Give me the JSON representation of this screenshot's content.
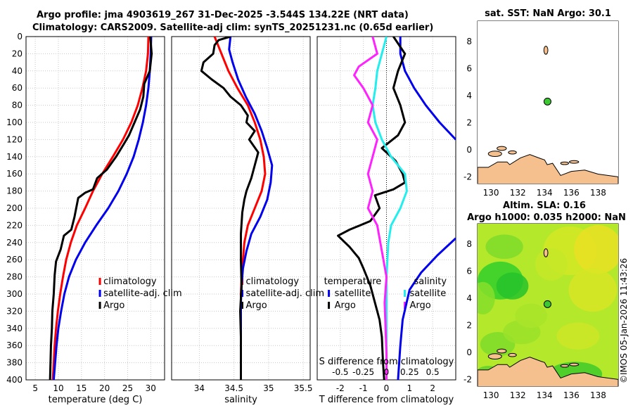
{
  "header": {
    "line1": "Argo profile: jma 4903619_267 31-Dec-2025 -3.544S 134.22E (NRT data)",
    "line2": "Climatology: CARS2009. Satellite-adj clim: synTS_20251231.nc (0.65d earlier)"
  },
  "colors": {
    "climatology": "#ff0000",
    "satellite": "#0000ee",
    "argo": "#000000",
    "t_diff": "#000000",
    "s_diff": "#ff22ff",
    "s_sat": "#22eeee",
    "land": "#f6c08e"
  },
  "chart_data": [
    {
      "type": "line",
      "id": "temperature",
      "xlabel": "temperature (deg C)",
      "ylabel": "",
      "xlim": [
        3,
        33
      ],
      "ylim": [
        400,
        0
      ],
      "xticks": [
        5,
        10,
        15,
        20,
        25,
        30
      ],
      "yticks": [
        0,
        20,
        40,
        60,
        80,
        100,
        120,
        140,
        160,
        180,
        200,
        220,
        240,
        260,
        280,
        300,
        320,
        340,
        360,
        380,
        400
      ],
      "legend": [
        "climatology",
        "satellite-adj. clim",
        "Argo"
      ],
      "series": [
        {
          "name": "climatology",
          "points": [
            [
              29.5,
              0
            ],
            [
              29.4,
              20
            ],
            [
              29,
              40
            ],
            [
              28.2,
              60
            ],
            [
              27.2,
              80
            ],
            [
              25.8,
              100
            ],
            [
              24,
              120
            ],
            [
              21.8,
              140
            ],
            [
              19.5,
              160
            ],
            [
              17.5,
              180
            ],
            [
              15.8,
              200
            ],
            [
              14,
              220
            ],
            [
              12.7,
              240
            ],
            [
              11.7,
              260
            ],
            [
              11,
              280
            ],
            [
              10.4,
              300
            ],
            [
              9.9,
              320
            ],
            [
              9.5,
              340
            ],
            [
              9.2,
              360
            ],
            [
              9,
              380
            ],
            [
              8.8,
              400
            ]
          ]
        },
        {
          "name": "satellite-adj. clim",
          "points": [
            [
              30.1,
              0
            ],
            [
              30,
              20
            ],
            [
              29.8,
              40
            ],
            [
              29.5,
              60
            ],
            [
              29,
              80
            ],
            [
              28.3,
              100
            ],
            [
              27.4,
              120
            ],
            [
              26.3,
              140
            ],
            [
              24.8,
              160
            ],
            [
              23,
              180
            ],
            [
              20.8,
              200
            ],
            [
              18.2,
              220
            ],
            [
              15.8,
              240
            ],
            [
              13.8,
              260
            ],
            [
              12.3,
              280
            ],
            [
              11.3,
              300
            ],
            [
              10.6,
              320
            ],
            [
              10,
              340
            ],
            [
              9.6,
              360
            ],
            [
              9.3,
              380
            ],
            [
              9,
              400
            ]
          ]
        },
        {
          "name": "Argo",
          "points": [
            [
              29.9,
              0
            ],
            [
              30.2,
              20
            ],
            [
              29.8,
              40
            ],
            [
              28.6,
              55
            ],
            [
              28.4,
              70
            ],
            [
              27.7,
              85
            ],
            [
              26.5,
              100
            ],
            [
              25.3,
              115
            ],
            [
              24.2,
              125
            ],
            [
              22.5,
              140
            ],
            [
              20.5,
              155
            ],
            [
              18.4,
              165
            ],
            [
              17.5,
              178
            ],
            [
              15.8,
              182
            ],
            [
              14.3,
              188
            ],
            [
              13.5,
              210
            ],
            [
              12.8,
              225
            ],
            [
              11.2,
              232
            ],
            [
              10.5,
              248
            ],
            [
              9.5,
              262
            ],
            [
              9.2,
              278
            ],
            [
              9,
              300
            ],
            [
              8.7,
              320
            ],
            [
              8.6,
              340
            ],
            [
              8.4,
              360
            ],
            [
              8.3,
              380
            ],
            [
              8.2,
              400
            ]
          ]
        }
      ]
    },
    {
      "type": "line",
      "id": "salinity",
      "xlabel": "salinity",
      "xlim": [
        33.6,
        35.6
      ],
      "ylim": [
        400,
        0
      ],
      "xticks": [
        34,
        34.5,
        35,
        35.5
      ],
      "xticklabels": [
        "34",
        "34.5",
        "35",
        "35.5"
      ],
      "legend": [
        "climatology",
        "satellite-adj. clim",
        "Argo"
      ],
      "series": [
        {
          "name": "climatology",
          "points": [
            [
              34.22,
              0
            ],
            [
              34.32,
              20
            ],
            [
              34.42,
              40
            ],
            [
              34.55,
              60
            ],
            [
              34.7,
              80
            ],
            [
              34.8,
              100
            ],
            [
              34.88,
              120
            ],
            [
              34.93,
              140
            ],
            [
              34.95,
              160
            ],
            [
              34.9,
              180
            ],
            [
              34.8,
              200
            ],
            [
              34.7,
              220
            ],
            [
              34.65,
              240
            ],
            [
              34.63,
              260
            ],
            [
              34.61,
              280
            ],
            [
              34.6,
              300
            ],
            [
              34.6,
              320
            ],
            [
              34.6,
              340
            ],
            [
              34.6,
              360
            ],
            [
              34.6,
              380
            ],
            [
              34.6,
              400
            ]
          ]
        },
        {
          "name": "satellite-adj. clim",
          "points": [
            [
              34.45,
              0
            ],
            [
              34.43,
              15
            ],
            [
              34.48,
              30
            ],
            [
              34.56,
              50
            ],
            [
              34.67,
              70
            ],
            [
              34.8,
              90
            ],
            [
              34.9,
              110
            ],
            [
              34.98,
              130
            ],
            [
              35.05,
              150
            ],
            [
              35.03,
              170
            ],
            [
              34.98,
              190
            ],
            [
              34.88,
              210
            ],
            [
              34.75,
              230
            ],
            [
              34.68,
              250
            ],
            [
              34.63,
              270
            ],
            [
              34.61,
              290
            ],
            [
              34.6,
              310
            ],
            [
              34.6,
              330
            ],
            [
              34.6,
              350
            ],
            [
              34.6,
              370
            ],
            [
              34.6,
              400
            ]
          ]
        },
        {
          "name": "Argo",
          "points": [
            [
              34.45,
              0
            ],
            [
              34.28,
              4
            ],
            [
              34.22,
              10
            ],
            [
              34.2,
              20
            ],
            [
              34.06,
              30
            ],
            [
              34.03,
              40
            ],
            [
              34.18,
              50
            ],
            [
              34.35,
              60
            ],
            [
              34.45,
              70
            ],
            [
              34.6,
              80
            ],
            [
              34.7,
              92
            ],
            [
              34.68,
              100
            ],
            [
              34.8,
              110
            ],
            [
              34.72,
              120
            ],
            [
              34.85,
              135
            ],
            [
              34.8,
              150
            ],
            [
              34.75,
              165
            ],
            [
              34.68,
              180
            ],
            [
              34.65,
              190
            ],
            [
              34.62,
              205
            ],
            [
              34.6,
              230
            ],
            [
              34.6,
              260
            ],
            [
              34.61,
              290
            ],
            [
              34.59,
              320
            ],
            [
              34.6,
              350
            ],
            [
              34.6,
              380
            ],
            [
              34.6,
              400
            ]
          ]
        }
      ]
    },
    {
      "type": "line",
      "id": "difference",
      "xlabel": "T difference from climatology",
      "toplabel": "S difference from climatology",
      "xlim": [
        -3,
        3
      ],
      "ylim": [
        400,
        0
      ],
      "xticks": [
        -2,
        -1,
        0,
        1,
        2
      ],
      "xticklabels": [
        "-2",
        "-1",
        "0",
        "1",
        "2"
      ],
      "topticks": [
        -0.5,
        -0.25,
        0,
        0.25,
        0.5
      ],
      "toplabels": [
        "-0.5",
        "-0.25",
        "0",
        "0.25",
        "0.5"
      ],
      "legend_t": [
        "temperature",
        "satellite",
        "Argo"
      ],
      "legend_s": [
        "salinity",
        "satellite",
        "Argo"
      ],
      "series": [
        {
          "name": "T satellite",
          "points": [
            [
              0.6,
              0
            ],
            [
              0.6,
              20
            ],
            [
              0.8,
              40
            ],
            [
              1.2,
              60
            ],
            [
              1.7,
              80
            ],
            [
              2.3,
              100
            ],
            [
              3,
              120
            ]
          ]
        },
        {
          "name": "T satellite deep",
          "points": [
            [
              3,
              235
            ],
            [
              2.2,
              255
            ],
            [
              1.5,
              275
            ],
            [
              1,
              295
            ],
            [
              0.7,
              330
            ],
            [
              0.6,
              360
            ],
            [
              0.5,
              400
            ]
          ]
        },
        {
          "name": "T Argo",
          "points": [
            [
              0.3,
              0
            ],
            [
              0.8,
              20
            ],
            [
              0.5,
              40
            ],
            [
              0.3,
              60
            ],
            [
              0.6,
              80
            ],
            [
              0.8,
              100
            ],
            [
              0.5,
              115
            ],
            [
              -0.2,
              130
            ],
            [
              0.4,
              145
            ],
            [
              0.7,
              160
            ],
            [
              0.8,
              170
            ],
            [
              0.3,
              178
            ],
            [
              -0.5,
              185
            ],
            [
              -0.3,
              200
            ],
            [
              -0.7,
              215
            ],
            [
              -1.6,
              225
            ],
            [
              -2.1,
              232
            ],
            [
              -1.6,
              245
            ],
            [
              -1.2,
              258
            ],
            [
              -1,
              270
            ],
            [
              -0.7,
              290
            ],
            [
              -0.5,
              310
            ],
            [
              -0.3,
              330
            ],
            [
              -0.2,
              350
            ],
            [
              -0.15,
              380
            ],
            [
              -0.1,
              400
            ]
          ]
        },
        {
          "name": "S satellite",
          "points": [
            [
              0,
              0
            ],
            [
              -0.05,
              20
            ],
            [
              -0.1,
              40
            ],
            [
              -0.12,
              60
            ],
            [
              -0.15,
              80
            ],
            [
              -0.12,
              100
            ],
            [
              -0.05,
              120
            ],
            [
              0.05,
              140
            ],
            [
              0.2,
              160
            ],
            [
              0.22,
              180
            ],
            [
              0.15,
              200
            ],
            [
              0.05,
              220
            ],
            [
              0.02,
              240
            ],
            [
              0.01,
              260
            ],
            [
              0,
              280
            ],
            [
              0,
              300
            ],
            [
              0,
              330
            ],
            [
              0,
              360
            ],
            [
              0,
              400
            ]
          ]
        },
        {
          "name": "S Argo",
          "points": [
            [
              -0.15,
              0
            ],
            [
              -0.1,
              20
            ],
            [
              -0.3,
              35
            ],
            [
              -0.35,
              45
            ],
            [
              -0.25,
              60
            ],
            [
              -0.15,
              80
            ],
            [
              -0.2,
              100
            ],
            [
              -0.1,
              120
            ],
            [
              -0.15,
              140
            ],
            [
              -0.2,
              160
            ],
            [
              -0.15,
              180
            ],
            [
              -0.2,
              200
            ],
            [
              -0.1,
              220
            ],
            [
              -0.05,
              250
            ],
            [
              0,
              280
            ],
            [
              -0.02,
              310
            ],
            [
              -0.01,
              340
            ],
            [
              0,
              370
            ],
            [
              0,
              400
            ]
          ]
        }
      ]
    },
    {
      "type": "scatter",
      "id": "sst_map",
      "title": "sat. SST: NaN Argo: 30.1",
      "xlim": [
        129,
        139.5
      ],
      "ylim": [
        -2.5,
        9.5
      ],
      "xticks": [
        130,
        132,
        134,
        136,
        138
      ],
      "yticks": [
        -2,
        0,
        2,
        4,
        6,
        8
      ],
      "points": [
        {
          "name": "Argo",
          "x": 134.22,
          "y": 3.56
        }
      ]
    },
    {
      "type": "heatmap",
      "id": "sla_map",
      "title1": "Altim. SLA: 0.16",
      "title2": "Argo h1000: 0.035 h2000: NaN",
      "xlim": [
        129,
        139.5
      ],
      "ylim": [
        -2.5,
        9.5
      ],
      "xticks": [
        130,
        132,
        134,
        136,
        138
      ],
      "yticks": [
        -2,
        0,
        2,
        4,
        6,
        8
      ],
      "points": [
        {
          "name": "Argo",
          "x": 134.22,
          "y": 3.56
        }
      ]
    }
  ],
  "stamp": "©IMOS 05-Jan-2026 11:43:26"
}
